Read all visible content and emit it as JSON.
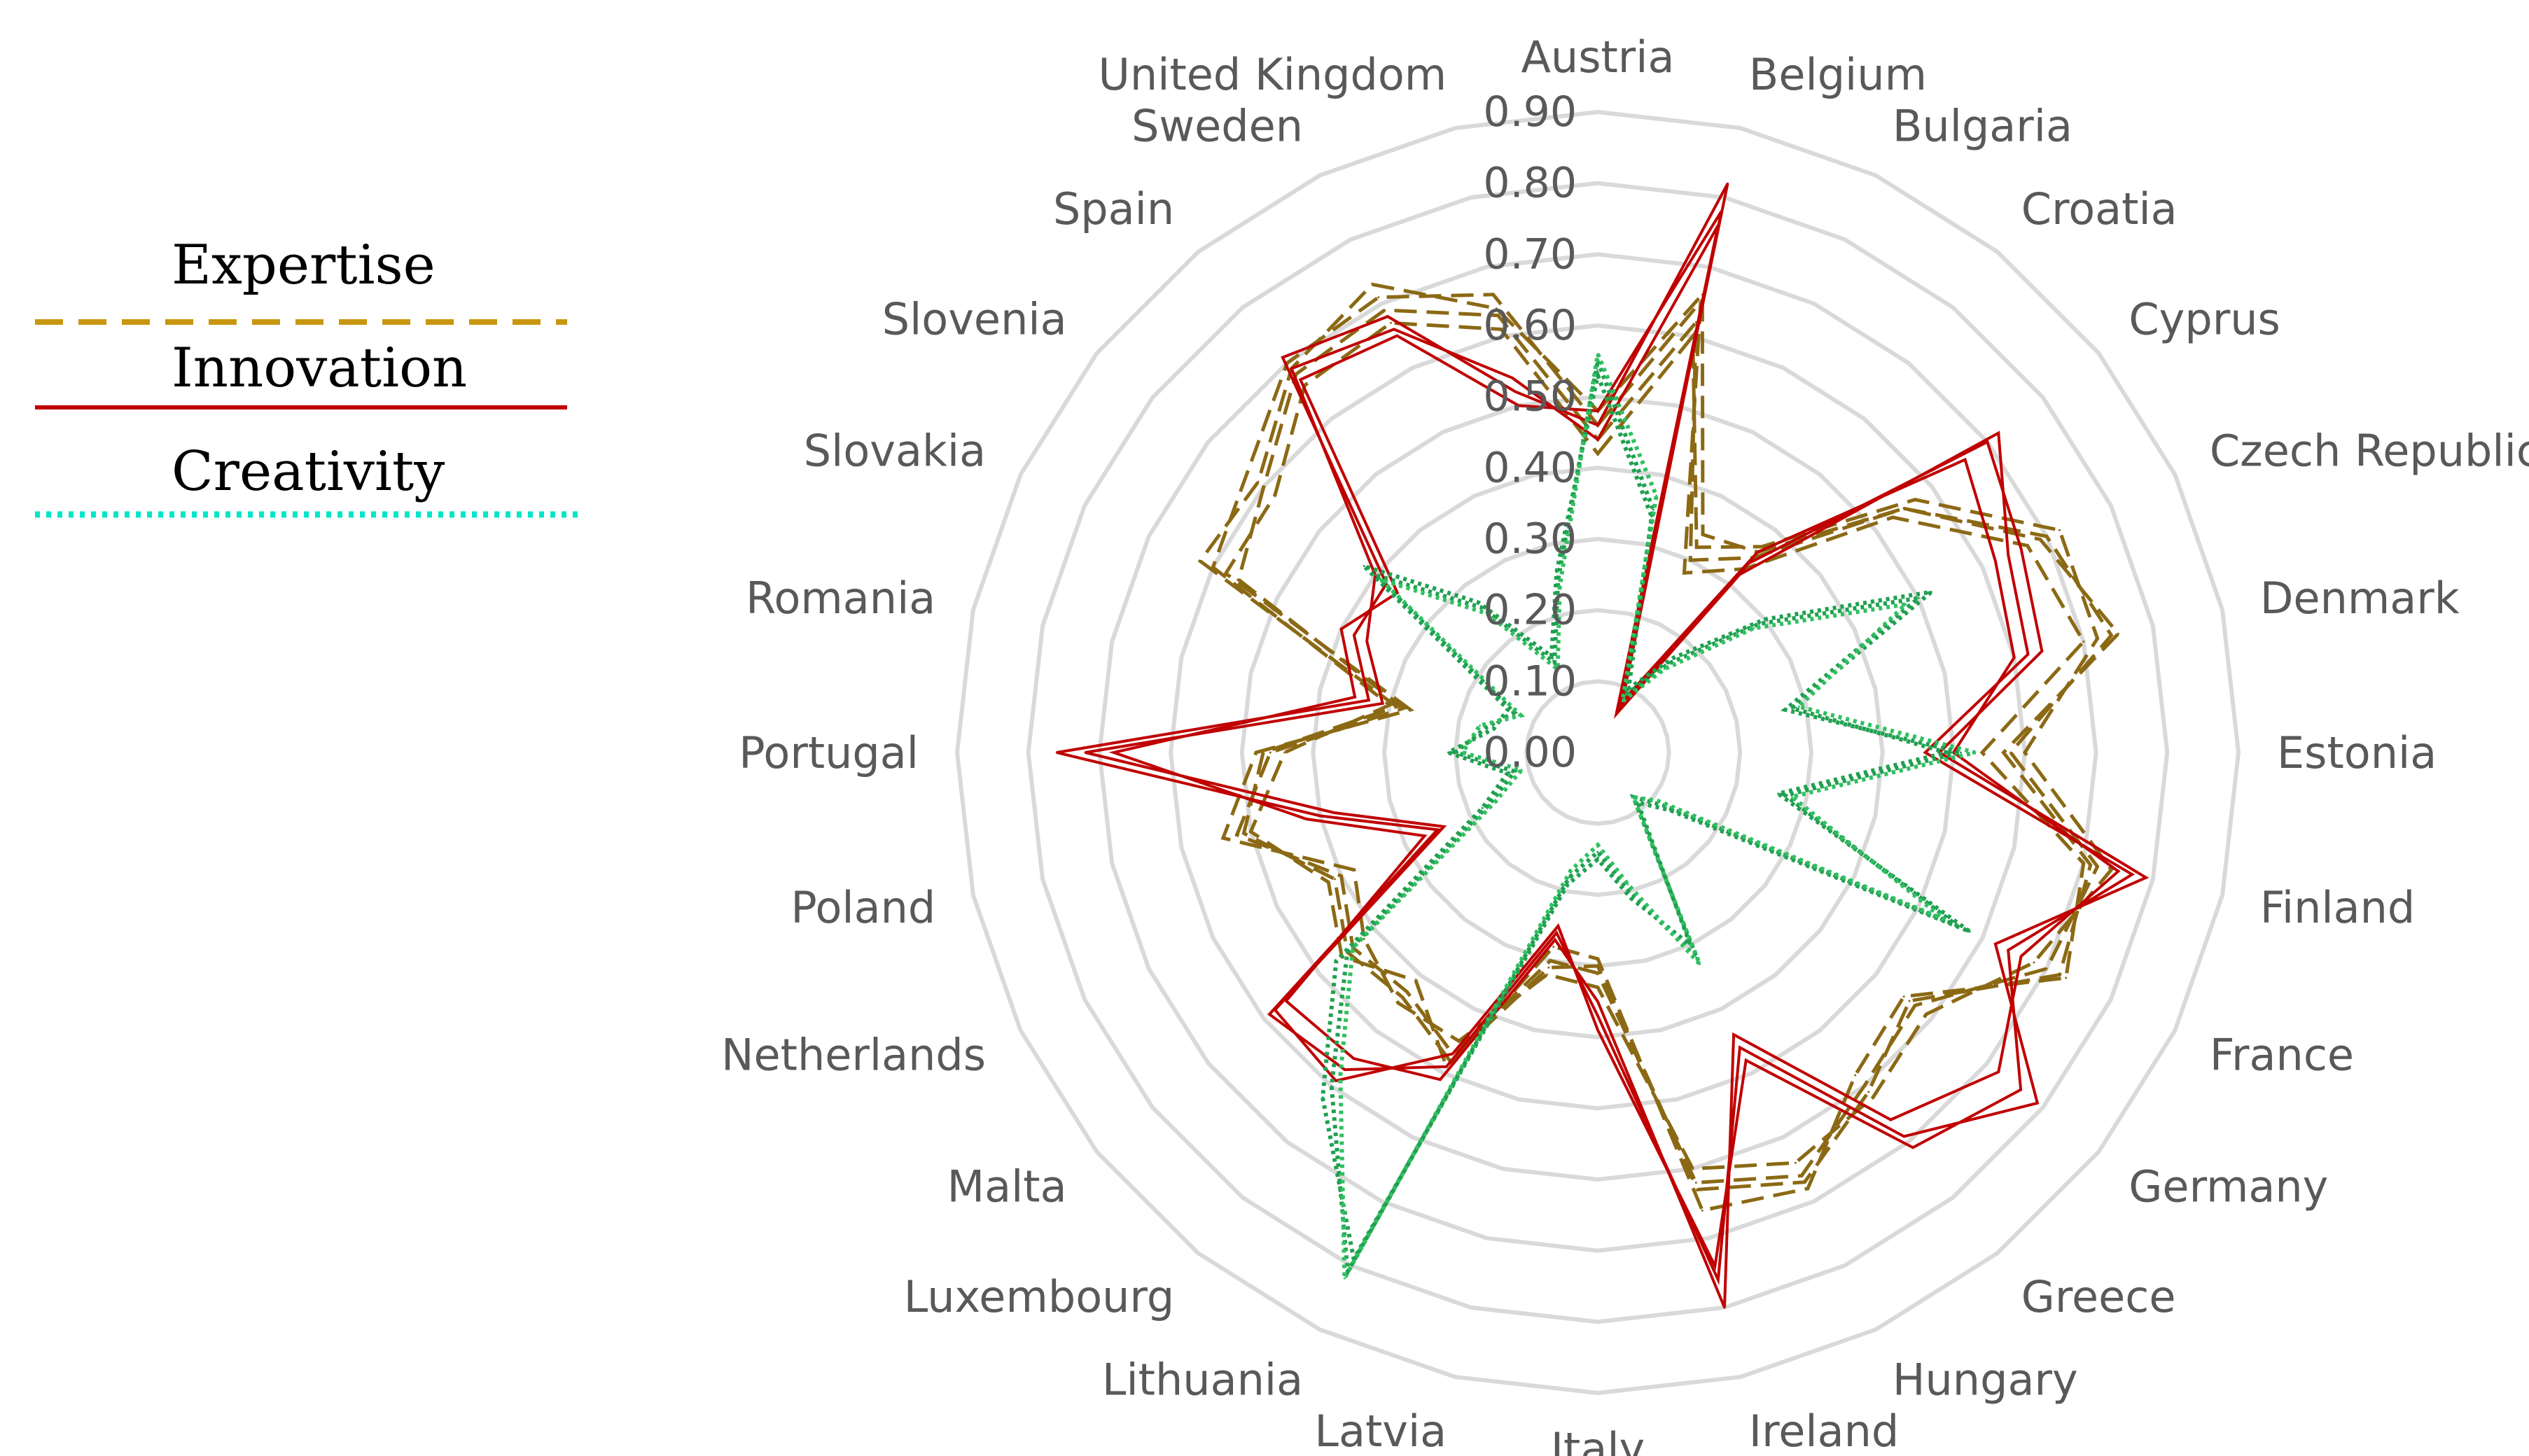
{
  "chart_data": {
    "type": "radar",
    "title": "",
    "categories": [
      "Austria",
      "Belgium",
      "Bulgaria",
      "Croatia",
      "Cyprus",
      "Czech Republic",
      "Denmark",
      "Estonia",
      "Finland",
      "France",
      "Germany",
      "Greece",
      "Hungary",
      "Ireland",
      "Italy",
      "Latvia",
      "Lithuania",
      "Luxembourg",
      "Malta",
      "Netherlands",
      "Poland",
      "Portugal",
      "Romania",
      "Slovakia",
      "Slovenia",
      "Spain",
      "Sweden",
      "United Kingdom"
    ],
    "ticks": [
      "0.00",
      "0.10",
      "0.20",
      "0.30",
      "0.40",
      "0.50",
      "0.60",
      "0.70",
      "0.80",
      "0.90"
    ],
    "rmax": 0.9,
    "grid": true,
    "legend_position": "left",
    "colors": {
      "Expertise": "#C8960F",
      "Innovation": "#C00000",
      "Creativity": "#00E6C8"
    },
    "series": [
      {
        "name": "Expertise",
        "style": "dashed",
        "color": "#C8960F",
        "runs": [
          {
            "color": "#8B6914",
            "values": [
              0.44,
              0.62,
              0.3,
              0.35,
              0.55,
              0.7,
              0.74,
              0.58,
              0.72,
              0.7,
              0.57,
              0.6,
              0.66,
              0.62,
              0.31,
              0.3,
              0.47,
              0.43,
              0.44,
              0.4,
              0.52,
              0.46,
              0.28,
              0.56,
              0.6,
              0.68,
              0.69,
              0.63
            ]
          },
          {
            "color": "#8B6914",
            "values": [
              0.46,
              0.65,
              0.28,
              0.33,
              0.53,
              0.67,
              0.7,
              0.54,
              0.7,
              0.73,
              0.55,
              0.58,
              0.68,
              0.66,
              0.29,
              0.28,
              0.49,
              0.41,
              0.46,
              0.42,
              0.5,
              0.44,
              0.3,
              0.6,
              0.63,
              0.7,
              0.71,
              0.66
            ]
          },
          {
            "color": "#8B6914",
            "values": [
              0.42,
              0.6,
              0.32,
              0.37,
              0.57,
              0.72,
              0.72,
              0.6,
              0.74,
              0.68,
              0.59,
              0.62,
              0.64,
              0.6,
              0.33,
              0.32,
              0.45,
              0.45,
              0.42,
              0.38,
              0.54,
              0.48,
              0.27,
              0.58,
              0.58,
              0.66,
              0.67,
              0.61
            ]
          },
          {
            "color": "#8B6914",
            "values": [
              0.48,
              0.66,
              0.34,
              0.36,
              0.55,
              0.69,
              0.75,
              0.57,
              0.71,
              0.72,
              0.56,
              0.61,
              0.67,
              0.63,
              0.3,
              0.31,
              0.48,
              0.44,
              0.45,
              0.41,
              0.51,
              0.47,
              0.29,
              0.62,
              0.61,
              0.69,
              0.73,
              0.64
            ]
          }
        ]
      },
      {
        "name": "Innovation",
        "style": "solid",
        "color": "#C00000",
        "runs": [
          {
            "color": "#C00000",
            "values": [
              0.46,
              0.82,
              0.07,
              0.34,
              0.7,
              0.66,
              0.64,
              0.48,
              0.79,
              0.62,
              0.79,
              0.69,
              0.46,
              0.76,
              0.37,
              0.26,
              0.49,
              0.57,
              0.59,
              0.25,
              0.4,
              0.76,
              0.33,
              0.38,
              0.38,
              0.71,
              0.68,
              0.52
            ]
          },
          {
            "color": "#C00000",
            "values": [
              0.48,
              0.78,
              0.08,
              0.36,
              0.66,
              0.62,
              0.6,
              0.5,
              0.75,
              0.66,
              0.72,
              0.66,
              0.44,
              0.8,
              0.35,
              0.27,
              0.51,
              0.55,
              0.56,
              0.27,
              0.42,
              0.68,
              0.35,
              0.4,
              0.36,
              0.67,
              0.65,
              0.5
            ]
          },
          {
            "color": "#C00000",
            "values": [
              0.44,
              0.76,
              0.06,
              0.32,
              0.72,
              0.64,
              0.62,
              0.46,
              0.77,
              0.64,
              0.76,
              0.71,
              0.48,
              0.74,
              0.39,
              0.25,
              0.47,
              0.59,
              0.58,
              0.24,
              0.38,
              0.72,
              0.31,
              0.36,
              0.4,
              0.69,
              0.66,
              0.54
            ]
          }
        ]
      },
      {
        "name": "Creativity",
        "style": "dotted",
        "color": "#00E6C8",
        "runs": [
          {
            "color": "#20A050",
            "values": [
              0.55,
              0.35,
              0.09,
              0.16,
              0.29,
              0.5,
              0.27,
              0.51,
              0.27,
              0.56,
              0.12,
              0.08,
              0.32,
              0.2,
              0.14,
              0.18,
              0.81,
              0.6,
              0.45,
              0.17,
              0.12,
              0.2,
              0.16,
              0.13,
              0.4,
              0.26,
              0.14,
              0.25
            ]
          },
          {
            "color": "#20A050",
            "values": [
              0.53,
              0.34,
              0.1,
              0.17,
              0.3,
              0.52,
              0.28,
              0.49,
              0.26,
              0.58,
              0.13,
              0.09,
              0.3,
              0.21,
              0.15,
              0.19,
              0.79,
              0.62,
              0.47,
              0.18,
              0.13,
              0.21,
              0.15,
              0.14,
              0.42,
              0.27,
              0.15,
              0.26
            ]
          },
          {
            "color": "#30C060",
            "values": [
              0.56,
              0.37,
              0.08,
              0.15,
              0.28,
              0.48,
              0.29,
              0.53,
              0.28,
              0.54,
              0.11,
              0.08,
              0.33,
              0.19,
              0.13,
              0.17,
              0.82,
              0.58,
              0.44,
              0.16,
              0.11,
              0.19,
              0.17,
              0.12,
              0.39,
              0.25,
              0.13,
              0.24
            ]
          }
        ]
      }
    ]
  }
}
